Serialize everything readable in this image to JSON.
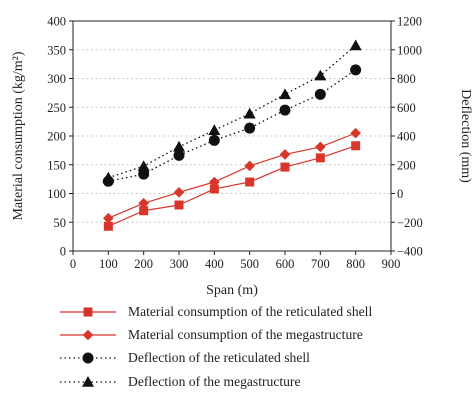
{
  "chart_data": {
    "type": "line",
    "x": [
      100,
      200,
      300,
      400,
      500,
      600,
      700,
      800
    ],
    "xlabel": "Span (m)",
    "xlim": [
      0,
      900
    ],
    "xticks": [
      0,
      100,
      200,
      300,
      400,
      500,
      600,
      700,
      800,
      900
    ],
    "ylabel": "Material consumption (kg/m²)",
    "ylim": [
      0,
      400
    ],
    "yticks": [
      0,
      50,
      100,
      150,
      200,
      250,
      300,
      350,
      400
    ],
    "y2label": "Deflection (mm)",
    "y2lim": [
      -400,
      1200
    ],
    "y2ticks": [
      -400,
      -200,
      0,
      200,
      400,
      600,
      800,
      1000,
      1200
    ],
    "legend_position": "bottom",
    "series": [
      {
        "name": "Material consumption of the reticulated shell",
        "axis": "left",
        "marker": "square",
        "line": "solid",
        "color": "#d9352a",
        "values": [
          43,
          70,
          80,
          108,
          120,
          146,
          162,
          183
        ]
      },
      {
        "name": "Material consumption of the megastructure",
        "axis": "left",
        "marker": "diamond",
        "line": "solid",
        "color": "#d9352a",
        "values": [
          57,
          83,
          102,
          120,
          148,
          168,
          181,
          205
        ]
      },
      {
        "name": "Deflection of the reticulated shell",
        "axis": "right",
        "marker": "circle",
        "line": "dotted",
        "color": "#111111",
        "values": [
          85,
          135,
          265,
          370,
          455,
          580,
          690,
          860
        ]
      },
      {
        "name": "Deflection of the megastructure",
        "axis": "right",
        "marker": "triangle",
        "line": "dotted",
        "color": "#111111",
        "values": [
          110,
          190,
          325,
          440,
          555,
          690,
          820,
          1030
        ]
      }
    ]
  }
}
